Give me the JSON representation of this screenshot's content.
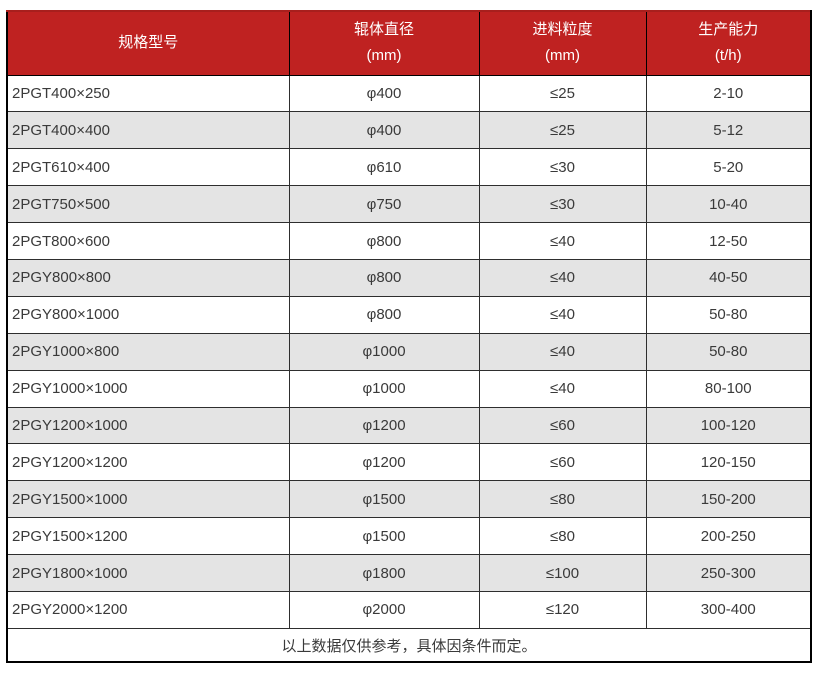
{
  "table": {
    "columns": [
      {
        "label": "规格型号",
        "sub": ""
      },
      {
        "label": "辊体直径",
        "sub": "(mm)"
      },
      {
        "label": "进料粒度",
        "sub": "(mm)"
      },
      {
        "label": "生产能力",
        "sub": "(t/h)"
      }
    ],
    "rows": [
      [
        "2PGT400×250",
        "φ400",
        "≤25",
        "2-10"
      ],
      [
        "2PGT400×400",
        "φ400",
        "≤25",
        "5-12"
      ],
      [
        "2PGT610×400",
        "φ610",
        "≤30",
        "5-20"
      ],
      [
        "2PGT750×500",
        "φ750",
        "≤30",
        "10-40"
      ],
      [
        "2PGT800×600",
        "φ800",
        "≤40",
        "12-50"
      ],
      [
        "2PGY800×800",
        "φ800",
        "≤40",
        "40-50"
      ],
      [
        "2PGY800×1000",
        "φ800",
        "≤40",
        "50-80"
      ],
      [
        "2PGY1000×800",
        "φ1000",
        "≤40",
        "50-80"
      ],
      [
        "2PGY1000×1000",
        "φ1000",
        "≤40",
        "80-100"
      ],
      [
        "2PGY1200×1000",
        "φ1200",
        "≤60",
        "100-120"
      ],
      [
        "2PGY1200×1200",
        "φ1200",
        "≤60",
        "120-150"
      ],
      [
        "2PGY1500×1000",
        "φ1500",
        "≤80",
        "150-200"
      ],
      [
        "2PGY1500×1200",
        "φ1500",
        "≤80",
        "200-250"
      ],
      [
        "2PGY1800×1000",
        "φ1800",
        "≤100",
        "250-300"
      ],
      [
        "2PGY2000×1200",
        "φ2000",
        "≤120",
        "300-400"
      ]
    ],
    "footnote": "以上数据仅供参考，具体因条件而定。",
    "colors": {
      "header_bg": "#bf2221",
      "header_text": "#ffffff",
      "row_alt_bg": "#e4e4e4",
      "row_bg": "#ffffff",
      "border": "#000000",
      "text": "#3a3a3a"
    }
  }
}
